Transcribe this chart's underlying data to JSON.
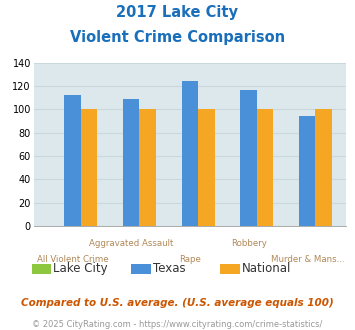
{
  "title_line1": "2017 Lake City",
  "title_line2": "Violent Crime Comparison",
  "categories": [
    "All Violent Crime",
    "Aggravated Assault",
    "Rape",
    "Robbery",
    "Murder & Mans..."
  ],
  "series": {
    "Lake City": [
      0,
      0,
      0,
      0,
      0
    ],
    "Texas": [
      112,
      109,
      124,
      117,
      94
    ],
    "National": [
      100,
      100,
      100,
      100,
      100
    ]
  },
  "colors": {
    "Lake City": "#8DC63F",
    "Texas": "#4A90D9",
    "National": "#F5A623"
  },
  "ylim": [
    0,
    140
  ],
  "yticks": [
    0,
    20,
    40,
    60,
    80,
    100,
    120,
    140
  ],
  "bar_width": 0.28,
  "grid_color": "#c8d8dc",
  "bg_color": "#dde8ec",
  "title_color": "#1a6fba",
  "xlabel_color_upper": "#b08858",
  "xlabel_color_lower": "#b08858",
  "legend_label_color": "#333333",
  "footnote1": "Compared to U.S. average. (U.S. average equals 100)",
  "footnote2": "© 2025 CityRating.com - https://www.cityrating.com/crime-statistics/",
  "footnote1_color": "#cc5500",
  "footnote2_color": "#999999",
  "cat_upper": [
    "",
    "Aggravated Assault",
    "",
    "Robbery",
    ""
  ],
  "cat_lower": [
    "All Violent Crime",
    "",
    "Rape",
    "",
    "Murder & Mans..."
  ]
}
